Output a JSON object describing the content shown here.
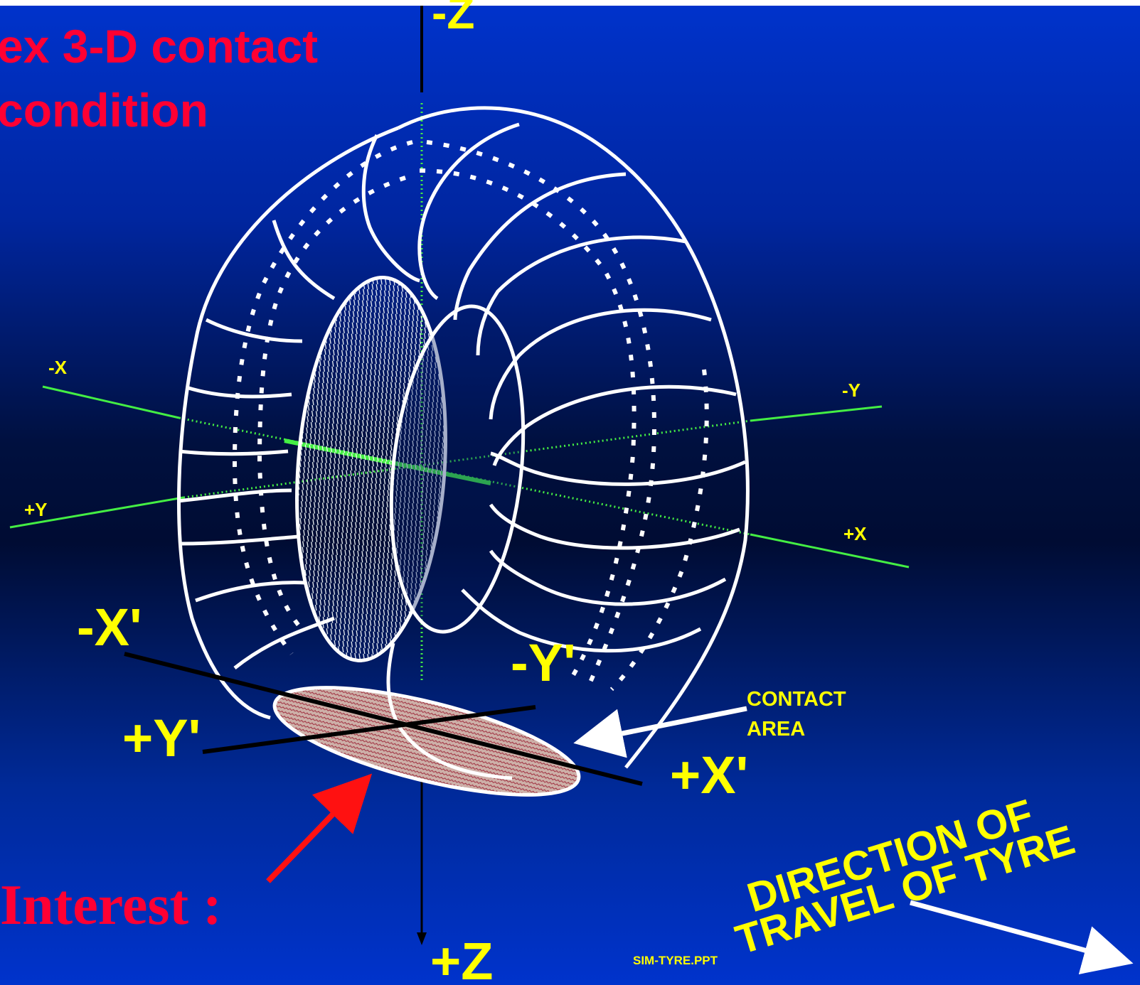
{
  "title": {
    "line1": "ex 3-D contact",
    "line2": "condition"
  },
  "interest_label": "Interest :",
  "axes": {
    "neg_z": "-Z",
    "pos_z": "+Z",
    "neg_x": "-X",
    "pos_x": "+X",
    "neg_y": "-Y",
    "pos_y": "+Y",
    "neg_x_prime": "-X'",
    "pos_x_prime": "+X'",
    "neg_y_prime": "-Y'",
    "pos_y_prime": "+Y'"
  },
  "contact_area": {
    "line1": "CONTACT",
    "line2": "AREA"
  },
  "direction": {
    "line1": "DIRECTION OF",
    "line2": "TRAVEL OF TYRE"
  },
  "footer": "SIM-TYRE.PPT",
  "colors": {
    "background_top": "#0033cc",
    "background_mid": "#001040",
    "background_bottom": "#0033cc",
    "title": "#ff0033",
    "label_yellow": "#ffff00",
    "axis_green": "#44ee44",
    "tyre_white": "#ffffff",
    "arrow_red": "#ff1111",
    "contact_fill": "#c8a8a0"
  }
}
